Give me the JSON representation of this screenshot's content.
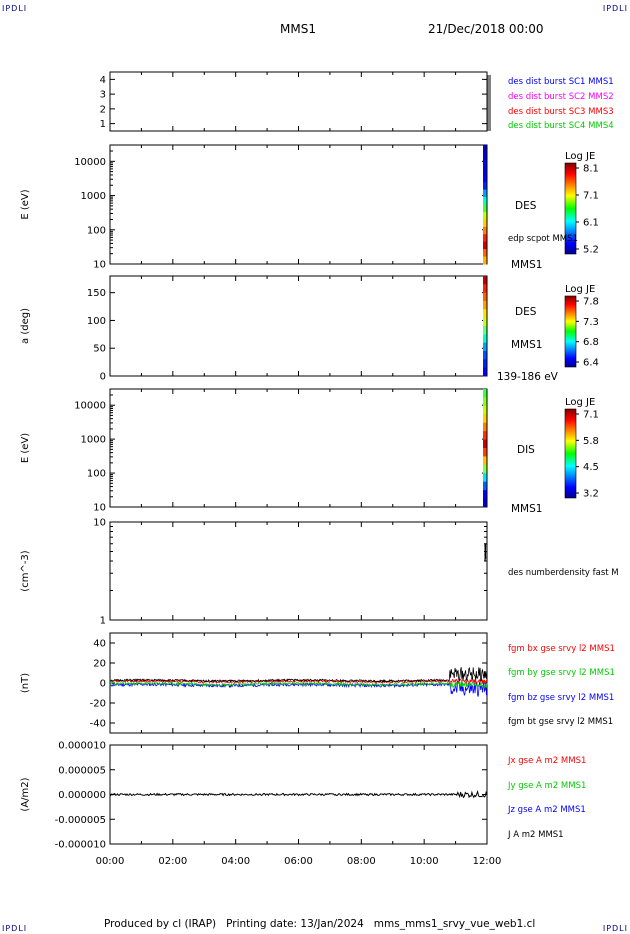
{
  "header": {
    "corner_tl": "IPDLI",
    "corner_tr": "IPDLI",
    "corner_bl": "IPDLI",
    "corner_br": "IPDLI",
    "spacecraft": "MMS1",
    "datetime": "21/Dec/2018 00:00"
  },
  "footer": {
    "text": "Produced by cl (IRAP)   Printing date: 13/Jan/2024   mms_mms1_srvy_vue_web1.cl"
  },
  "colors": {
    "blue": "#0000ff",
    "magenta": "#ff00ff",
    "red": "#ff0000",
    "green": "#00cc00",
    "black": "#000000"
  },
  "chart_data": [
    {
      "type": "scatter",
      "panel": "burst-availability",
      "ylim": [
        0.5,
        4.5
      ],
      "yticks": [
        "1",
        "2",
        "3",
        "4"
      ],
      "legend": [
        {
          "name": "des dist burst SC1 MMS1",
          "color": "#0000ff"
        },
        {
          "name": "des dist burst SC2 MMS2",
          "color": "#ff00ff"
        },
        {
          "name": "des dist burst SC3 MMS3",
          "color": "#ff0000"
        },
        {
          "name": "des dist burst SC4 MMS4",
          "color": "#00cc00"
        }
      ]
    },
    {
      "type": "heatmap",
      "panel": "des-energy",
      "ylabel": "E (eV)",
      "yscale": "log",
      "ylim": [
        10,
        30000
      ],
      "yticks": [
        "10",
        "100",
        "1000",
        "10000"
      ],
      "labels": [
        "DES",
        "edp scpot MMS1",
        "MMS1"
      ],
      "colorbar": {
        "title": "Log JE",
        "ticks": [
          "8.1",
          "7.1",
          "6.1",
          "5.2"
        ]
      }
    },
    {
      "type": "heatmap",
      "panel": "des-pitch",
      "ylabel": "a (deg)",
      "ylim": [
        0,
        180
      ],
      "yticks": [
        "0",
        "50",
        "100",
        "150"
      ],
      "labels": [
        "DES",
        "MMS1",
        "139-186 eV"
      ],
      "colorbar": {
        "title": "Log JE",
        "ticks": [
          "7.8",
          "7.3",
          "6.8",
          "6.4"
        ]
      }
    },
    {
      "type": "heatmap",
      "panel": "dis-energy",
      "ylabel": "E (eV)",
      "yscale": "log",
      "ylim": [
        10,
        30000
      ],
      "yticks": [
        "10",
        "100",
        "1000",
        "10000"
      ],
      "labels": [
        "DIS",
        "MMS1"
      ],
      "colorbar": {
        "title": "Log JE",
        "ticks": [
          "7.1",
          "5.8",
          "4.5",
          "3.2"
        ]
      }
    },
    {
      "type": "line",
      "panel": "density",
      "ylabel": "(cm^-3)",
      "yscale": "log",
      "ylim": [
        1,
        10
      ],
      "yticks": [
        "1",
        "10"
      ],
      "legend": [
        {
          "name": "des numberdensity fast M",
          "color": "#000000"
        }
      ]
    },
    {
      "type": "line",
      "panel": "fgm",
      "ylabel": "(nT)",
      "ylim": [
        -50,
        50
      ],
      "yticks": [
        "-40",
        "-20",
        "0",
        "20",
        "40"
      ],
      "legend": [
        {
          "name": "fgm bx gse srvy l2 MMS1",
          "color": "#ff0000"
        },
        {
          "name": "fgm by gse srvy l2 MMS1",
          "color": "#00cc00"
        },
        {
          "name": "fgm bz gse srvy l2 MMS1",
          "color": "#0000ff"
        },
        {
          "name": "fgm bt gse srvy l2 MMS1",
          "color": "#000000"
        }
      ]
    },
    {
      "type": "line",
      "panel": "current",
      "ylabel": "(A/m2)",
      "ylim": [
        -1e-05,
        1e-05
      ],
      "yticks": [
        "-0.000010",
        "-0.000005",
        "0.000000",
        "0.000005",
        "0.000010"
      ],
      "legend": [
        {
          "name": "Jx gse A m2 MMS1",
          "color": "#ff0000"
        },
        {
          "name": "Jy gse A m2 MMS1",
          "color": "#00cc00"
        },
        {
          "name": "Jz gse A m2 MMS1",
          "color": "#0000ff"
        },
        {
          "name": "J A m2 MMS1",
          "color": "#000000"
        }
      ],
      "xticks": [
        "00:00",
        "02:00",
        "04:00",
        "06:00",
        "08:00",
        "10:00",
        "12:00"
      ]
    }
  ]
}
